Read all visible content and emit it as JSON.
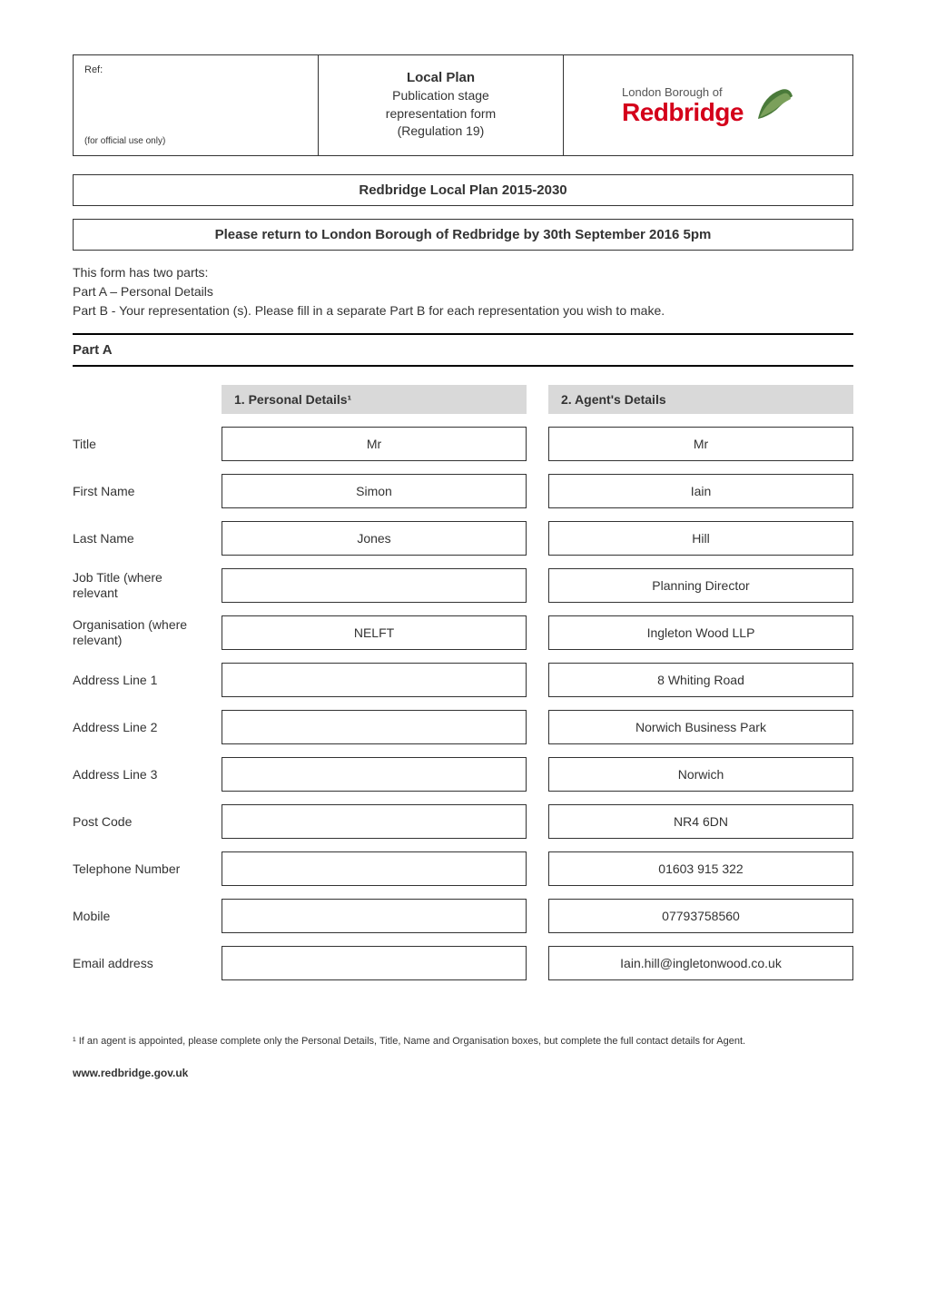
{
  "header": {
    "ref_label": "Ref:",
    "official_use": "(for official use only)",
    "center_title": "Local Plan",
    "center_line1": "Publication stage",
    "center_line2": "representation form",
    "center_line3": "(Regulation 19)",
    "logo_borough": "London Borough of",
    "logo_name": "Redbridge"
  },
  "main_title": "Redbridge Local Plan 2015-2030",
  "return_notice": "Please return to London Borough of Redbridge by 30th September 2016 5pm",
  "intro": {
    "line1": "This form has two parts:",
    "line2": "Part A – Personal Details",
    "line3": "Part B - Your representation (s). Please fill in a separate Part B for each representation you wish to make."
  },
  "part_a_label": "Part A",
  "section_headers": {
    "personal": "1.   Personal Details¹",
    "agent": "2.   Agent's Details"
  },
  "rows": [
    {
      "label": "Title",
      "personal": "Mr",
      "agent": "Mr"
    },
    {
      "label": "First Name",
      "personal": "Simon",
      "agent": "Iain"
    },
    {
      "label": "Last Name",
      "personal": "Jones",
      "agent": "Hill"
    },
    {
      "label": "Job Title (where relevant",
      "personal": "",
      "agent": "Planning Director"
    },
    {
      "label": "Organisation (where relevant)",
      "personal": "NELFT",
      "agent": "Ingleton Wood LLP"
    },
    {
      "label": "Address Line 1",
      "personal": "",
      "agent": "8 Whiting Road"
    },
    {
      "label": "Address Line 2",
      "personal": "",
      "agent": "Norwich Business Park"
    },
    {
      "label": "Address Line 3",
      "personal": "",
      "agent": "Norwich"
    },
    {
      "label": "Post Code",
      "personal": "",
      "agent": "NR4 6DN"
    },
    {
      "label": "Telephone Number",
      "personal": "",
      "agent": "01603 915 322"
    },
    {
      "label": "Mobile",
      "personal": "",
      "agent": "07793758560"
    },
    {
      "label": "Email address",
      "personal": "",
      "agent": "Iain.hill@ingletonwood.co.uk"
    }
  ],
  "footnote": "¹ If an agent is appointed, please complete only the Personal Details, Title, Name and Organisation boxes, but complete the full contact details for Agent.",
  "footer_url": "www.redbridge.gov.uk",
  "colors": {
    "border": "#333333",
    "header_bg": "#d9d9d9",
    "redbridge_red": "#d4001a",
    "leaf_green": "#4a7a3a",
    "leaf_light": "#7ba05b",
    "text": "#333333"
  }
}
